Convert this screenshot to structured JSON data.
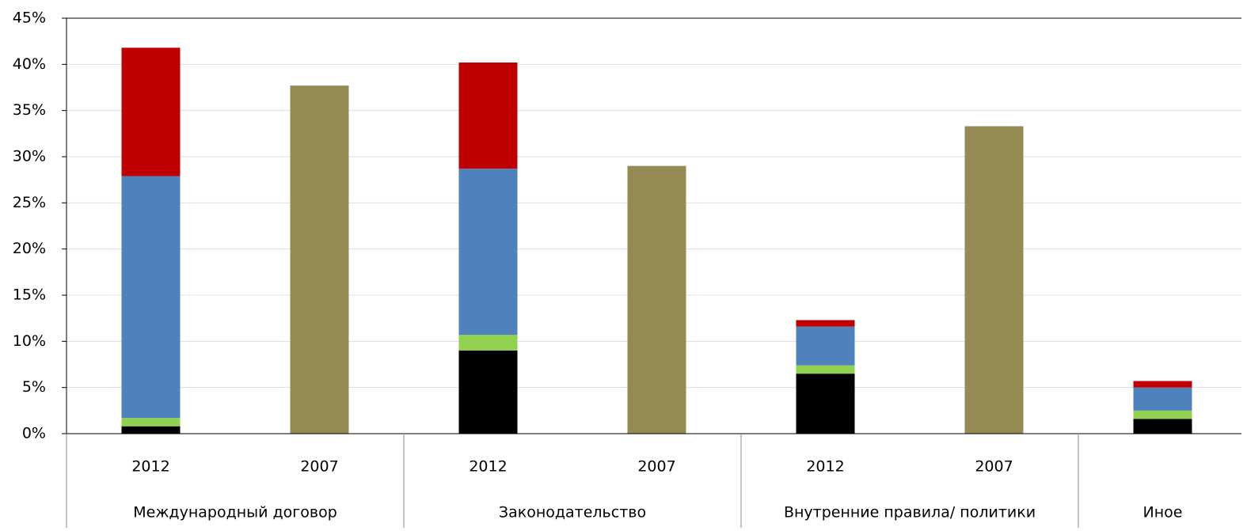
{
  "chart_data": {
    "type": "bar",
    "stacked": true,
    "categories": [
      "2012",
      "2007",
      "2012",
      "2007",
      "2012",
      "2007",
      null
    ],
    "groups": [
      "Международный договор",
      "Законодательство",
      "Внутренние правила/ политики",
      "Иное"
    ],
    "series": [
      {
        "color": "#000000",
        "values": [
          0.8,
          null,
          9.0,
          null,
          6.5,
          null,
          1.6
        ]
      },
      {
        "color": "#92d050",
        "values": [
          0.9,
          null,
          1.7,
          null,
          0.9,
          null,
          0.9
        ]
      },
      {
        "color": "#4f81bd",
        "values": [
          26.2,
          null,
          18.0,
          null,
          4.2,
          null,
          2.5
        ]
      },
      {
        "color": "#c00000",
        "values": [
          13.9,
          null,
          11.5,
          null,
          0.7,
          null,
          0.7
        ]
      },
      {
        "color": "#948a54",
        "values": [
          null,
          37.7,
          null,
          29.0,
          null,
          33.3,
          null
        ]
      }
    ],
    "ylim": [
      0,
      45
    ],
    "yticks": [
      {
        "value": 0,
        "label": "0%"
      },
      {
        "value": 5,
        "label": "5%"
      },
      {
        "value": 10,
        "label": "10%"
      },
      {
        "value": 15,
        "label": "15%"
      },
      {
        "value": 20,
        "label": "20%"
      },
      {
        "value": 25,
        "label": "25%"
      },
      {
        "value": 30,
        "label": "30%"
      },
      {
        "value": 35,
        "label": "35%"
      },
      {
        "value": 40,
        "label": "40%"
      },
      {
        "value": 45,
        "label": "45%"
      }
    ],
    "grid": true
  }
}
